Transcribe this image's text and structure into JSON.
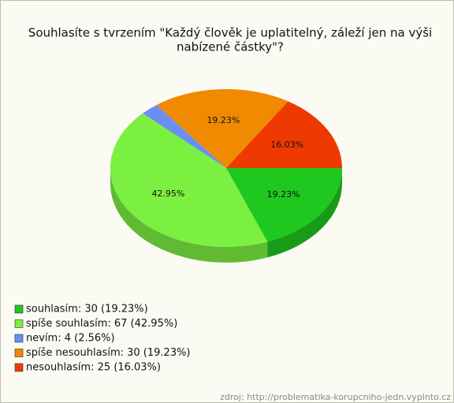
{
  "chart_data": {
    "type": "pie",
    "title": [
      "Souhlasíte s tvrzením \"Každý člověk je uplatitelný, záleží jen na výši",
      "nabízené částky\"?"
    ],
    "categories": [
      "souhlasím: 30 (19.23%)",
      "spíše souhlasím: 67 (42.95%)",
      "nevím: 4 (2.56%)",
      "spíše nesouhlasím: 30 (19.23%)",
      "nesouhlasím: 25 (16.03%)"
    ],
    "values": [
      19.23,
      42.95,
      2.56,
      19.23,
      16.03
    ],
    "value_labels": [
      "19.23%",
      "42.95%",
      null,
      "19.23%",
      "16.03%"
    ],
    "colors": [
      "#1fc81f",
      "#7cf040",
      "#6b8ff0",
      "#f08a00",
      "#ee3a00"
    ],
    "legend": "bottom-left",
    "source": "zdroj: http://problematika-korupcniho-jedn.vyplnto.cz"
  }
}
